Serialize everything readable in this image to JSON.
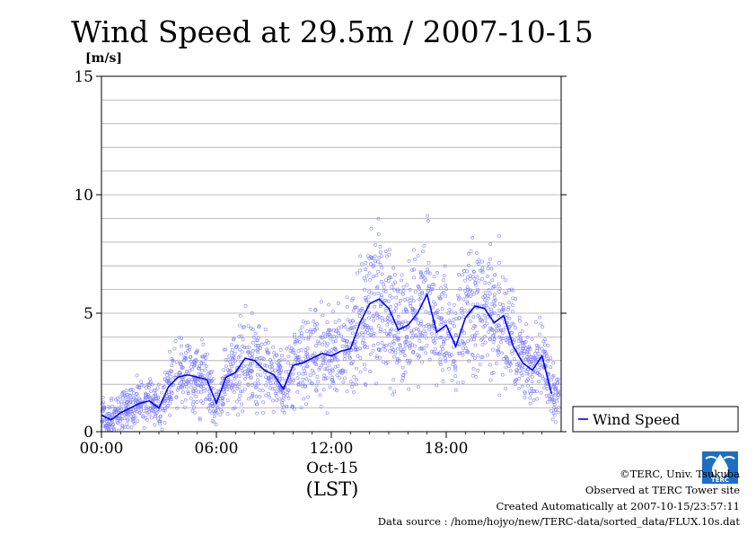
{
  "chart_data": {
    "type": "scatter",
    "title": "Wind Speed at 29.5m / 2007-10-15",
    "ylabel": "[m/s]",
    "xlabel": "(LST)",
    "date_label": "Oct-15",
    "ylim": [
      0,
      15
    ],
    "xlim": [
      0,
      24
    ],
    "y_ticks": [
      "0",
      "5",
      "10",
      "15"
    ],
    "x_ticks": [
      "00:00",
      "06:00",
      "12:00",
      "18:00"
    ],
    "grid": true,
    "legend": {
      "position": "right",
      "label": "Wind Speed"
    },
    "series": [
      {
        "name": "Wind Speed",
        "color": "#0000ff",
        "scatter_color": "#8080ff",
        "x": [
          0.0,
          0.5,
          1.0,
          1.5,
          2.0,
          2.5,
          3.0,
          3.5,
          4.0,
          4.5,
          5.0,
          5.5,
          6.0,
          6.5,
          7.0,
          7.5,
          8.0,
          8.5,
          9.0,
          9.5,
          10.0,
          10.5,
          11.0,
          11.5,
          12.0,
          12.5,
          13.0,
          13.5,
          14.0,
          14.5,
          15.0,
          15.5,
          16.0,
          16.5,
          17.0,
          17.5,
          18.0,
          18.5,
          19.0,
          19.5,
          20.0,
          20.5,
          21.0,
          21.5,
          22.0,
          22.5,
          23.0,
          23.5
        ],
        "values": [
          0.7,
          0.5,
          0.8,
          1.0,
          1.2,
          1.3,
          1.0,
          1.9,
          2.3,
          2.4,
          2.3,
          2.2,
          1.2,
          2.3,
          2.5,
          3.1,
          3.0,
          2.6,
          2.4,
          1.8,
          2.8,
          2.9,
          3.1,
          3.3,
          3.2,
          3.4,
          3.5,
          4.6,
          5.4,
          5.6,
          5.2,
          4.3,
          4.5,
          5.0,
          5.8,
          4.2,
          4.5,
          3.6,
          4.8,
          5.3,
          5.2,
          4.6,
          4.9,
          3.6,
          2.9,
          2.6,
          3.2,
          1.6
        ]
      }
    ]
  },
  "credits": {
    "copyright": "©TERC, Univ. Tsukuba",
    "observed": "Observed at TERC Tower site",
    "created": "Created Automatically at 2007-10-15/23:57:11",
    "source": "Data source : /home/hojyo/new/TERC-data/sorted_data/FLUX.10s.dat"
  },
  "logo": {
    "text": "TERC"
  }
}
